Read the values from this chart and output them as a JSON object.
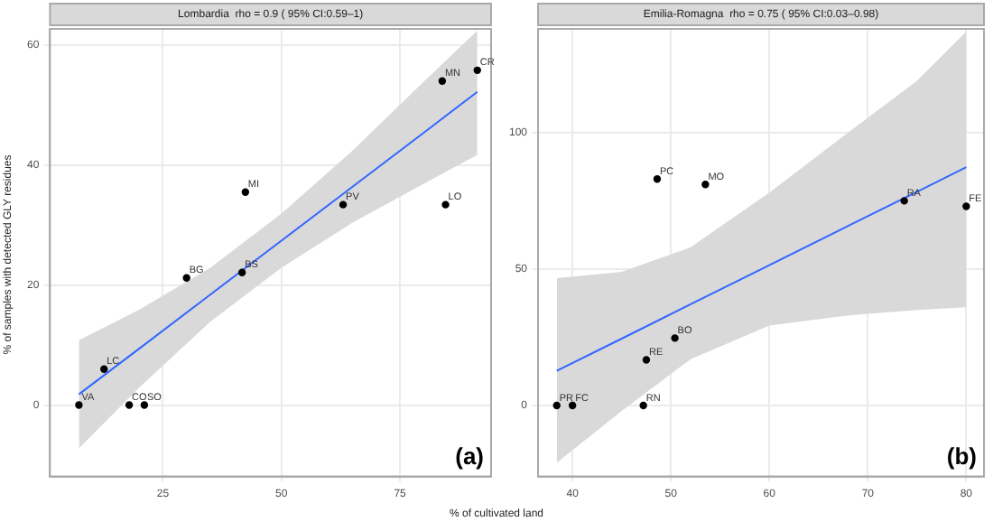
{
  "chart_data": [
    {
      "type": "scatter",
      "title": "Lombardia  rho = 0.9 ( 95% CI:0.59–1)",
      "xlabel": "% of cultivated land",
      "ylabel": "% of samples with detected GLY residues",
      "xlim": [
        1.2,
        94.2
      ],
      "ylim": [
        -11.9,
        62.7
      ],
      "xticks": [
        25,
        50,
        75
      ],
      "yticks": [
        0,
        20,
        40,
        60
      ],
      "grid": true,
      "line_style": "solid",
      "series": [
        {
          "marker": "circle",
          "color": "#000000",
          "x": [
            7.3,
            12.6,
            17.9,
            21.1,
            30.0,
            41.7,
            42.4,
            63.0,
            84.6,
            83.9,
            91.3
          ],
          "values": [
            0,
            6.0,
            0,
            0,
            21.2,
            22.1,
            35.5,
            33.4,
            33.4,
            54,
            55.8
          ]
        },
        {
          "type": "line",
          "color": "#3366ff",
          "x": [
            7.3,
            20,
            35,
            50,
            65,
            80,
            91.3
          ],
          "values": [
            1.8,
            9.4,
            18.4,
            27.4,
            36.4,
            45.4,
            52.2
          ],
          "lower": [
            -7.2,
            2.9,
            13.9,
            22.9,
            30.4,
            36.9,
            41.7
          ],
          "upper": [
            10.8,
            15.9,
            22.9,
            31.9,
            42.4,
            53.9,
            62.4
          ]
        }
      ],
      "annotations": [
        {
          "text": "VA",
          "x": 7.3,
          "y": 0
        },
        {
          "text": "LC",
          "x": 12.6,
          "y": 6.0
        },
        {
          "text": "CO",
          "x": 17.9,
          "y": 0
        },
        {
          "text": "SO",
          "x": 21.1,
          "y": 0
        },
        {
          "text": "BG",
          "x": 30.0,
          "y": 21.2
        },
        {
          "text": "BS",
          "x": 41.7,
          "y": 22.1
        },
        {
          "text": "MI",
          "x": 42.4,
          "y": 35.5
        },
        {
          "text": "PV",
          "x": 63.0,
          "y": 33.4
        },
        {
          "text": "LO",
          "x": 84.6,
          "y": 33.4
        },
        {
          "text": "MN",
          "x": 83.9,
          "y": 54
        },
        {
          "text": "CR",
          "x": 91.3,
          "y": 55.8
        },
        "(a)"
      ]
    },
    {
      "type": "scatter",
      "title": "Emilia-Romagna  rho = 0.75 ( 95% CI:0.03–0.98)",
      "xlim": [
        36.5,
        81.8
      ],
      "ylim": [
        -26,
        138
      ],
      "xticks": [
        40,
        50,
        60,
        70,
        80
      ],
      "yticks": [
        0,
        50,
        100
      ],
      "grid": true,
      "line_style": "solid",
      "series": [
        {
          "marker": "circle",
          "color": "#000000",
          "x": [
            38.4,
            40,
            47.2,
            47.5,
            50.4,
            48.6,
            53.5,
            73.7,
            80
          ],
          "values": [
            0,
            0,
            0,
            16.7,
            24.7,
            83,
            81,
            75,
            73
          ]
        },
        {
          "type": "line",
          "color": "#3366ff",
          "x": [
            38.4,
            45,
            52,
            60,
            68,
            75,
            80
          ],
          "values": [
            12.7,
            24.5,
            37.1,
            51.4,
            65.8,
            78.3,
            87.3
          ],
          "lower": [
            -21,
            -2,
            17,
            29.3,
            33,
            35,
            36
          ],
          "upper": [
            46.7,
            49,
            58,
            78,
            100,
            119,
            137
          ]
        }
      ],
      "annotations": [
        {
          "text": "PR",
          "x": 38.4,
          "y": 0
        },
        {
          "text": "FC",
          "x": 40,
          "y": 0
        },
        {
          "text": "RN",
          "x": 47.2,
          "y": 0
        },
        {
          "text": "RE",
          "x": 47.5,
          "y": 16.7
        },
        {
          "text": "BO",
          "x": 50.4,
          "y": 24.7
        },
        {
          "text": "PC",
          "x": 48.6,
          "y": 83
        },
        {
          "text": "MO",
          "x": 53.5,
          "y": 81
        },
        {
          "text": "RA",
          "x": 73.7,
          "y": 75
        },
        {
          "text": "FE",
          "x": 80,
          "y": 73
        },
        "(b)"
      ]
    }
  ]
}
